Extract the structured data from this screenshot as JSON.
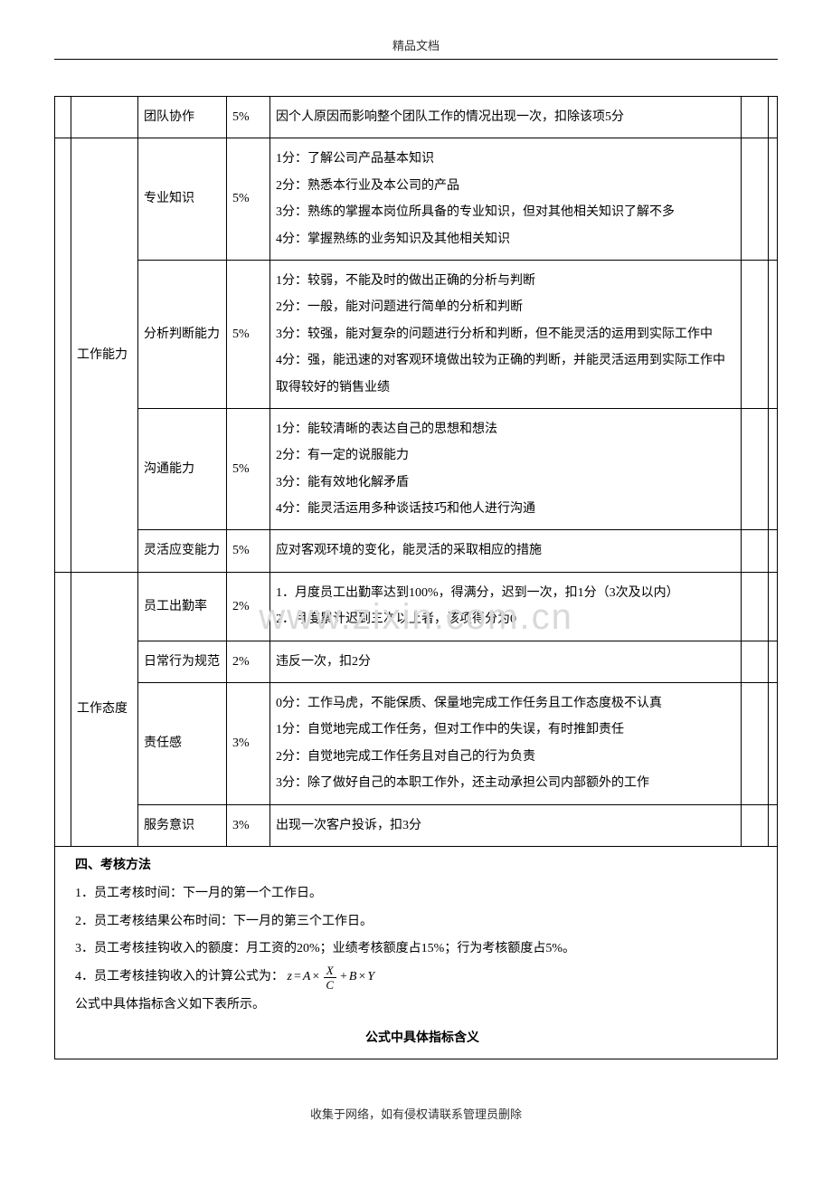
{
  "header": {
    "label": "精品文档"
  },
  "watermark": "www.zixin.com.cn",
  "footer": "收集于网络，如有侵权请联系管理员删除",
  "table": {
    "rows": [
      {
        "category": "",
        "item": "团队协作",
        "pct": "5%",
        "desc": "因个人原因而影响整个团队工作的情况出现一次，扣除该项5分"
      },
      {
        "category": "工作能力",
        "item": "专业知识",
        "pct": "5%",
        "desc": "1分：了解公司产品基本知识\n2分：熟悉本行业及本公司的产品\n3分：熟练的掌握本岗位所具备的专业知识，但对其他相关知识了解不多\n4分：掌握熟练的业务知识及其他相关知识"
      },
      {
        "category": "",
        "item": "分析判断能力",
        "pct": "5%",
        "desc": "1分：较弱，不能及时的做出正确的分析与判断\n2分：一般，能对问题进行简单的分析和判断\n3分：较强，能对复杂的问题进行分析和判断，但不能灵活的运用到实际工作中\n4分：强，能迅速的对客观环境做出较为正确的判断，并能灵活运用到实际工作中取得较好的销售业绩"
      },
      {
        "category": "",
        "item": "沟通能力",
        "pct": "5%",
        "desc": "1分：能较清晰的表达自己的思想和想法\n2分：有一定的说服能力\n3分：能有效地化解矛盾\n4分：能灵活运用多种谈话技巧和他人进行沟通"
      },
      {
        "category": "",
        "item": "灵活应变能力",
        "pct": "5%",
        "desc": "应对客观环境的变化，能灵活的采取相应的措施"
      },
      {
        "category": "工作态度",
        "item": "员工出勤率",
        "pct": "2%",
        "desc": "1．月度员工出勤率达到100%，得满分，迟到一次，扣1分（3次及以内）\n2．月度累计迟到三次以上者，该项得分为0"
      },
      {
        "category": "",
        "item": "日常行为规范",
        "pct": "2%",
        "desc": "违反一次，扣2分"
      },
      {
        "category": "",
        "item": "责任感",
        "pct": "3%",
        "desc": "0分：工作马虎，不能保质、保量地完成工作任务且工作态度极不认真\n1分：自觉地完成工作任务，但对工作中的失误，有时推卸责任\n2分：自觉地完成工作任务且对自己的行为负责\n3分：除了做好自己的本职工作外，还主动承担公司内部额外的工作"
      },
      {
        "category": "",
        "item": "服务意识",
        "pct": "3%",
        "desc": "出现一次客户投诉，扣3分"
      }
    ]
  },
  "methods": {
    "title": "四、考核方法",
    "lines": [
      "1．员工考核时间：下一月的第一个工作日。",
      "2．员工考核结果公布时间：下一月的第三个工作日。",
      "3．员工考核挂钩收入的额度：月工资的20%；业绩考核额度占15%；行为考核额度占5%。"
    ],
    "formula_prefix": "4．员工考核挂钩收入的计算公式为：",
    "formula": {
      "z": "z",
      "eq": "=",
      "A": "A",
      "mul": "×",
      "X": "X",
      "C": "C",
      "plus": "+",
      "B": "B",
      "Y": "Y"
    },
    "after_formula": "公式中具体指标含义如下表所示。",
    "subheading": "公式中具体指标含义"
  }
}
